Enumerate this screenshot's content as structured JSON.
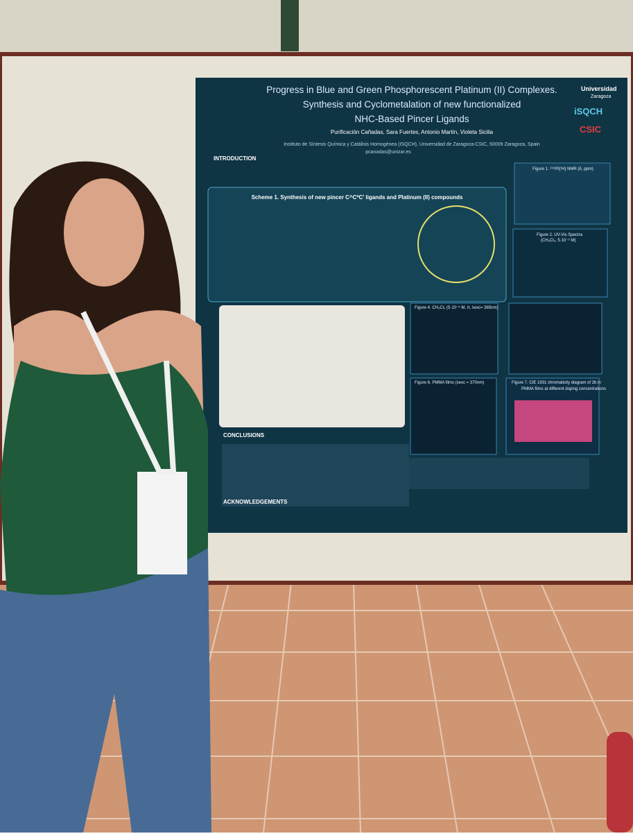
{
  "poster": {
    "title": [
      "Progress in Blue and Green Phosphorescent Platinum (II) Complexes.",
      "Synthesis and Cyclometalation of new functionalized",
      "NHC-Based Pincer Ligands"
    ],
    "authors": "Purificación Cañadas, Sara Fuertes, Antonio Martín, Violeta Sicilia",
    "affiliation": "Instituto de Síntesis Química y Catálisis Homogénea (ISQCH), Universidad de Zaragoza-CSIC, 50009 Zaragoza, Spain",
    "email": "pcanadas@unizar.es",
    "logos": [
      "Universidad",
      "Zaragoza",
      "iSQCH",
      "CSIC"
    ],
    "sections": {
      "introduction": "INTRODUCTION",
      "conclusions": "CONCLUSIONS",
      "acknowledgements": "ACKNOWLEDGEMENTS"
    },
    "scheme": "Scheme 1. Synthesis of new pincer C^C*C' ligands and Platinum (II) compounds",
    "figures": [
      "Figure 1. ¹⁹⁵Pt{¹H} NMR (δ, ppm)",
      "Figure 2. UV-Vis Spectra",
      "(CH₂Cl₂, 5·10⁻⁵ M)",
      "Figure 4. CH₂Cl₂ (5·10⁻⁵ M, rt, λexc= 365nm)",
      "Figure 6. PMMA films (λexc = 370nm)",
      "Figure 7. CIE 1931 chromaticity diagram of 2b in",
      "PMMA films at different doping concentrations"
    ]
  }
}
